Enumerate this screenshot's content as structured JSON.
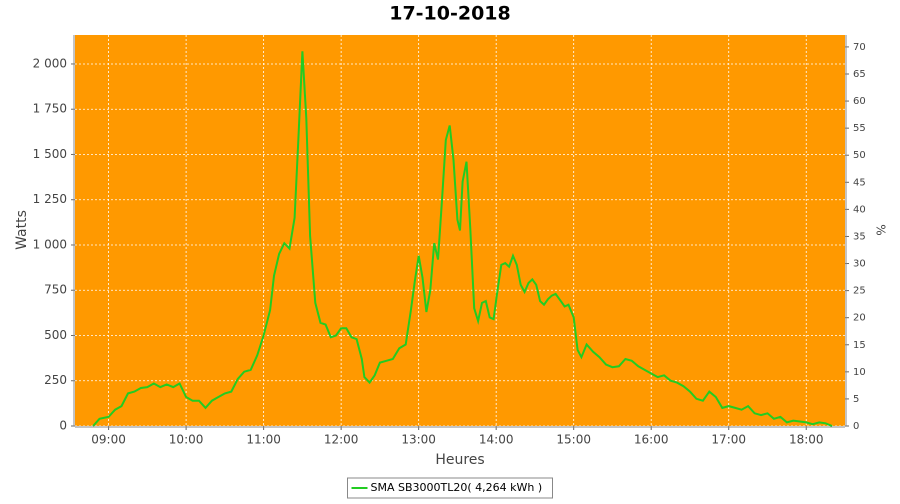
{
  "chart_data": {
    "type": "line",
    "title": "17-10-2018",
    "x_label": "Heures",
    "y_label": "Watts",
    "y2_label": "%",
    "x": [
      "08:48",
      "08:53",
      "09:00",
      "09:05",
      "09:10",
      "09:15",
      "09:20",
      "09:25",
      "09:30",
      "09:35",
      "09:40",
      "09:45",
      "09:50",
      "09:55",
      "10:00",
      "10:05",
      "10:10",
      "10:15",
      "10:20",
      "10:25",
      "10:30",
      "10:35",
      "10:40",
      "10:45",
      "10:50",
      "10:55",
      "11:00",
      "11:05",
      "11:08",
      "11:12",
      "11:16",
      "11:20",
      "11:24",
      "11:27",
      "11:30",
      "11:33",
      "11:36",
      "11:40",
      "11:44",
      "11:48",
      "11:52",
      "11:56",
      "12:00",
      "12:04",
      "12:08",
      "12:12",
      "12:16",
      "12:18",
      "12:22",
      "12:26",
      "12:30",
      "12:35",
      "12:40",
      "12:45",
      "12:50",
      "12:54",
      "12:57",
      "13:00",
      "13:03",
      "13:06",
      "13:09",
      "13:12",
      "13:15",
      "13:18",
      "13:21",
      "13:24",
      "13:27",
      "13:30",
      "13:32",
      "13:34",
      "13:37",
      "13:40",
      "13:43",
      "13:46",
      "13:49",
      "13:52",
      "13:55",
      "13:58",
      "14:01",
      "14:04",
      "14:07",
      "14:10",
      "14:13",
      "14:16",
      "14:19",
      "14:22",
      "14:25",
      "14:28",
      "14:31",
      "14:34",
      "14:37",
      "14:40",
      "14:43",
      "14:46",
      "14:50",
      "14:53",
      "14:56",
      "15:00",
      "15:03",
      "15:06",
      "15:10",
      "15:15",
      "15:20",
      "15:25",
      "15:30",
      "15:35",
      "15:40",
      "15:45",
      "15:50",
      "15:55",
      "16:00",
      "16:05",
      "16:10",
      "16:15",
      "16:20",
      "16:25",
      "16:30",
      "16:35",
      "16:40",
      "16:45",
      "16:50",
      "16:55",
      "17:00",
      "17:05",
      "17:10",
      "17:15",
      "17:20",
      "17:25",
      "17:30",
      "17:35",
      "17:40",
      "17:45",
      "17:50",
      "17:55",
      "18:00",
      "18:05",
      "18:10",
      "18:15",
      "18:20"
    ],
    "series": [
      {
        "name": "SMA SB3000TL20( 4,264 kWh )",
        "color": "#22cc22",
        "values": [
          0,
          40,
          50,
          90,
          110,
          180,
          190,
          210,
          215,
          235,
          215,
          230,
          215,
          235,
          160,
          140,
          140,
          100,
          140,
          160,
          180,
          190,
          260,
          300,
          310,
          390,
          500,
          640,
          830,
          950,
          1010,
          980,
          1150,
          1600,
          2070,
          1700,
          1050,
          680,
          570,
          560,
          490,
          500,
          540,
          540,
          490,
          480,
          370,
          270,
          240,
          280,
          350,
          360,
          370,
          430,
          450,
          640,
          800,
          940,
          820,
          630,
          750,
          1010,
          920,
          1240,
          1580,
          1660,
          1470,
          1140,
          1080,
          1350,
          1460,
          1090,
          650,
          580,
          680,
          690,
          600,
          590,
          750,
          890,
          900,
          880,
          940,
          890,
          780,
          740,
          790,
          810,
          780,
          690,
          670,
          700,
          720,
          730,
          690,
          660,
          670,
          600,
          420,
          380,
          450,
          410,
          380,
          340,
          325,
          330,
          370,
          360,
          330,
          310,
          290,
          270,
          280,
          250,
          240,
          220,
          190,
          150,
          140,
          190,
          160,
          100,
          110,
          100,
          90,
          110,
          70,
          60,
          70,
          40,
          50,
          20,
          30,
          25,
          20,
          10,
          20,
          15,
          0
        ]
      }
    ],
    "xlim": [
      "08:34",
      "18:30"
    ],
    "xticks": [
      "09:00",
      "10:00",
      "11:00",
      "12:00",
      "13:00",
      "14:00",
      "15:00",
      "16:00",
      "17:00",
      "18:00"
    ],
    "ylim": [
      0,
      2160
    ],
    "yticks": [
      0,
      250,
      500,
      750,
      {
        "value": 1000,
        "label": "1 000"
      },
      {
        "value": 1250,
        "label": "1 250"
      },
      {
        "value": 1500,
        "label": "1 500"
      },
      {
        "value": 1750,
        "label": "1 750"
      },
      {
        "value": 2000,
        "label": "2 000"
      }
    ],
    "y2lim": [
      0,
      72.2
    ],
    "y2ticks": [
      0,
      5,
      10,
      15,
      20,
      25,
      30,
      35,
      40,
      45,
      50,
      55,
      60,
      65,
      70
    ],
    "grid": true,
    "background": "#ff9900",
    "legend": "bottom"
  }
}
